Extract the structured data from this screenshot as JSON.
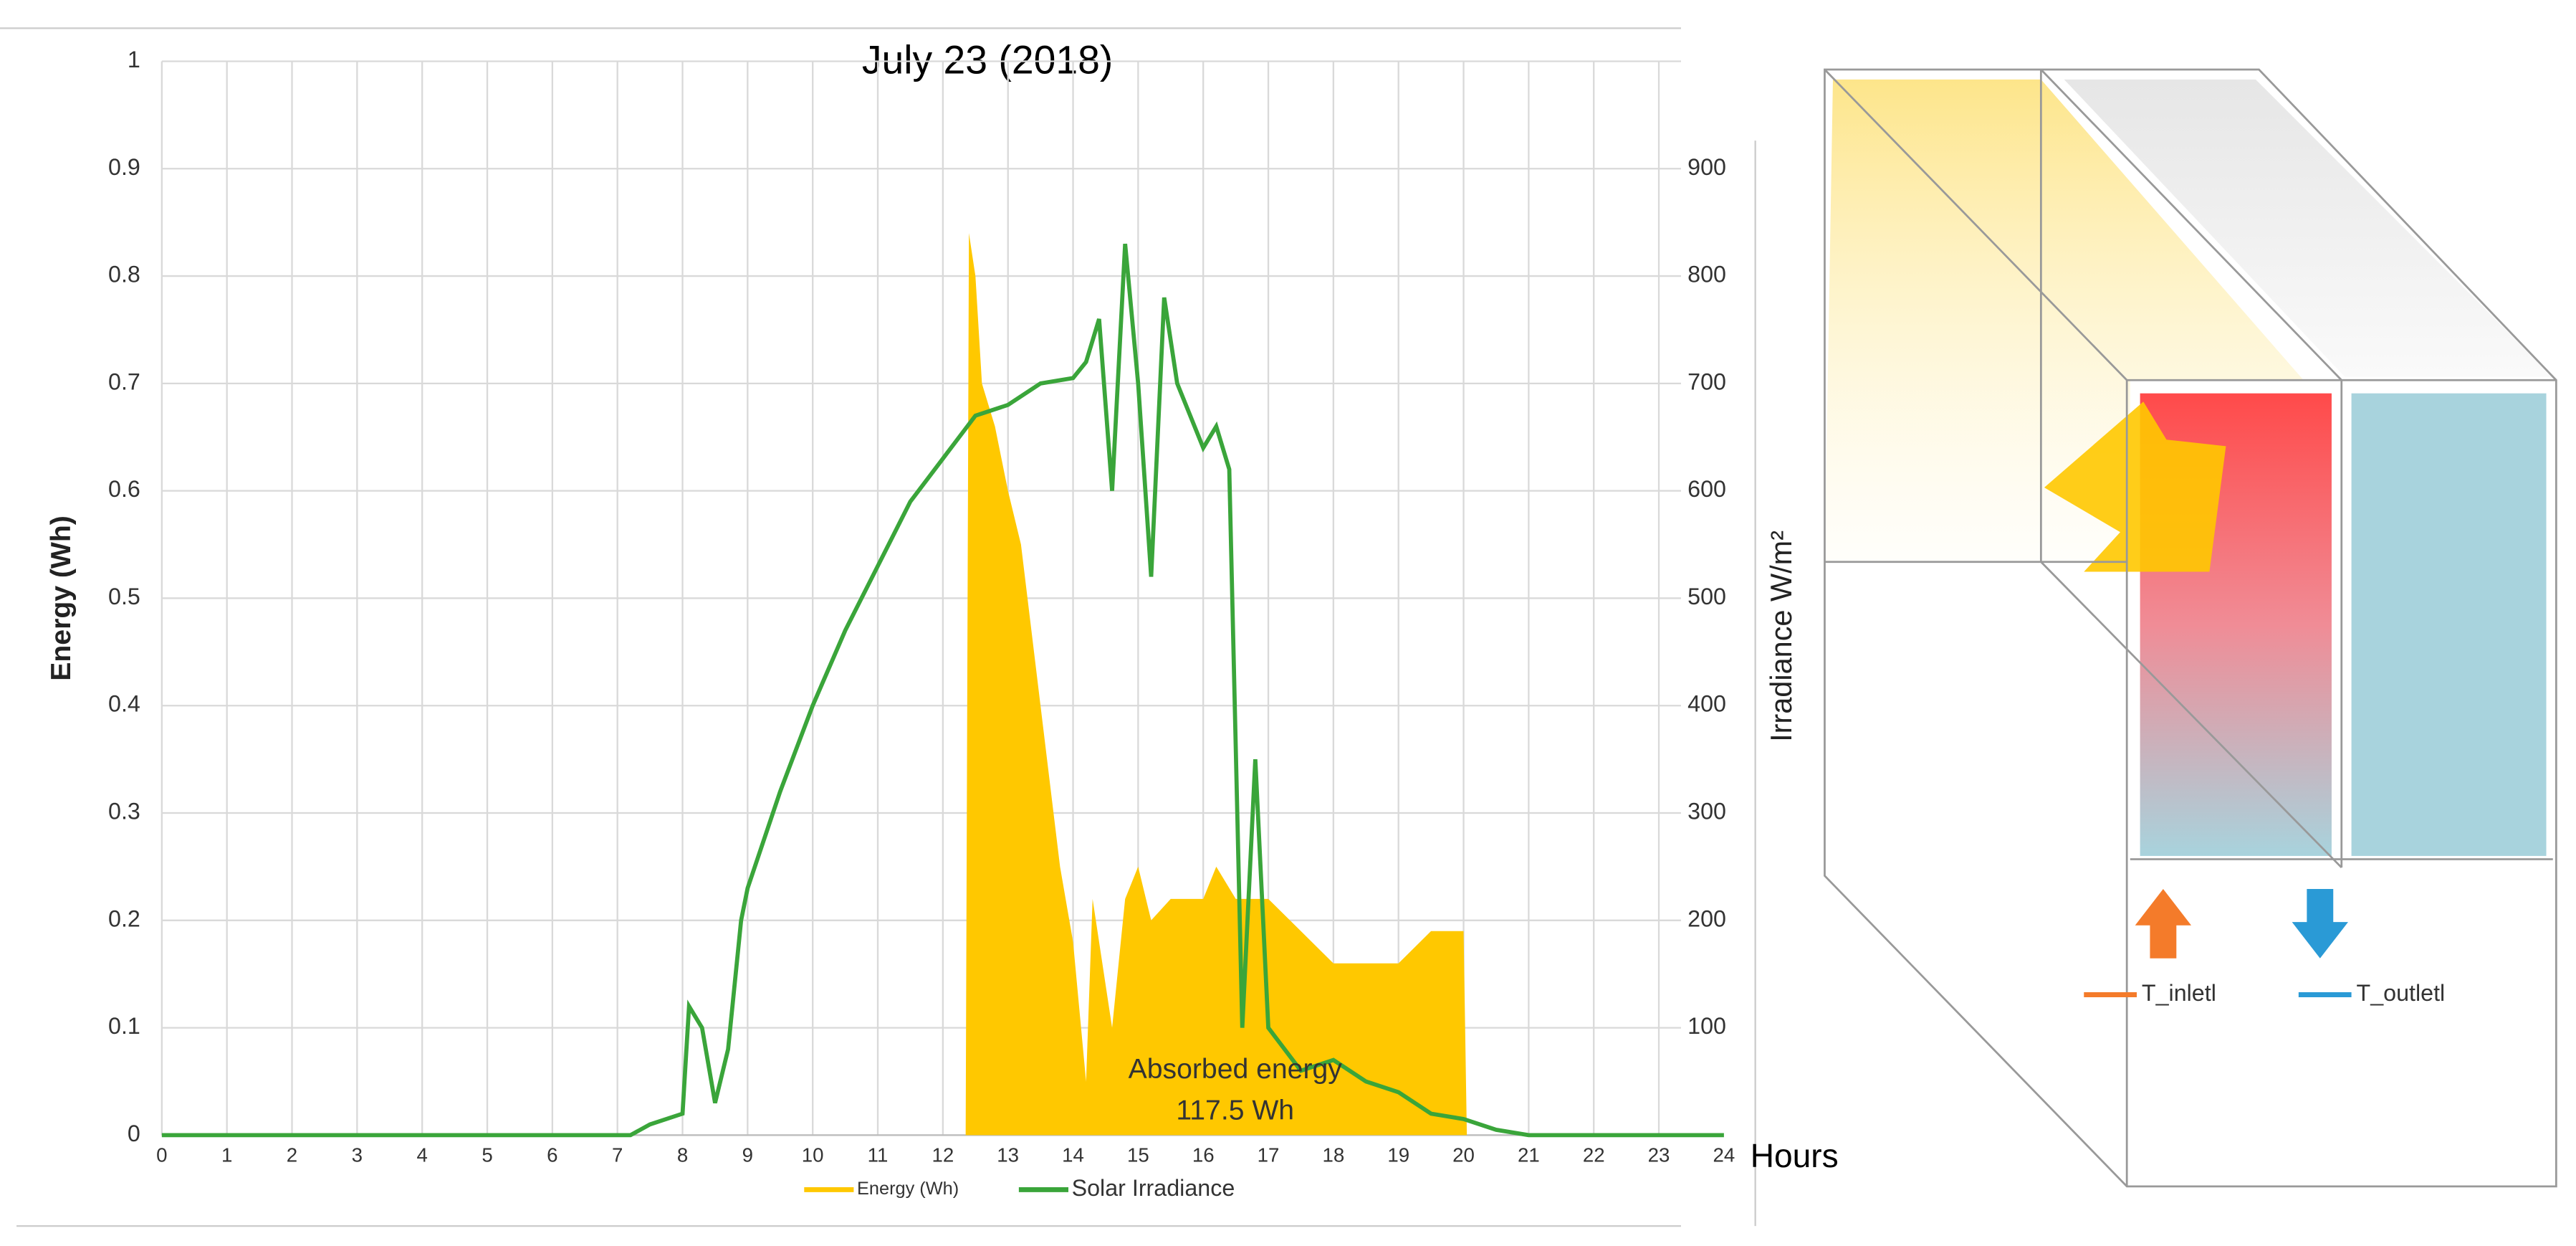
{
  "chart_data": {
    "type": "area-line",
    "title": "July 23 (2018)",
    "y_label": "Energy (Wh)",
    "y2_label": "Irradiance W/m²",
    "x_label": "Hours",
    "xlim": [
      0,
      24
    ],
    "xticks": [
      0,
      1,
      2,
      3,
      4,
      5,
      6,
      7,
      8,
      9,
      10,
      11,
      12,
      13,
      14,
      15,
      16,
      17,
      18,
      19,
      20,
      21,
      22,
      23,
      24
    ],
    "ylim": [
      0,
      1
    ],
    "yticks": [
      0,
      0.1,
      0.2,
      0.3,
      0.4,
      0.5,
      0.6,
      0.7,
      0.8,
      0.9,
      1
    ],
    "y2lim": [
      0,
      1000
    ],
    "y2ticks": [
      100,
      200,
      300,
      400,
      500,
      600,
      700,
      800,
      900
    ],
    "grid": true,
    "legend": "bottom",
    "annotation": [
      "Absorbed energy",
      "117.5 Wh"
    ],
    "series": [
      {
        "name": "Energy (Wh)",
        "color": "#ffc800",
        "kind": "area",
        "x": [
          0,
          12.35,
          12.4,
          12.5,
          12.6,
          12.8,
          13,
          13.2,
          13.4,
          13.6,
          13.8,
          14,
          14.2,
          14.3,
          14.6,
          14.8,
          15,
          15.2,
          15.5,
          16,
          16.2,
          16.5,
          17,
          17.5,
          18,
          19,
          19.5,
          20,
          20.05,
          24
        ],
        "values": [
          0,
          0,
          0.84,
          0.8,
          0.7,
          0.66,
          0.6,
          0.55,
          0.45,
          0.35,
          0.25,
          0.18,
          0.05,
          0.22,
          0.1,
          0.22,
          0.25,
          0.2,
          0.22,
          0.22,
          0.25,
          0.22,
          0.22,
          0.19,
          0.16,
          0.16,
          0.19,
          0.19,
          0,
          0
        ]
      },
      {
        "name": "Solar Irradiance",
        "color": "#3aa53a",
        "kind": "line",
        "axis": "y2",
        "x": [
          0,
          7.2,
          7.5,
          8,
          8.1,
          8.3,
          8.5,
          8.7,
          8.9,
          9,
          9.5,
          10,
          10.5,
          11,
          11.5,
          12,
          12.5,
          13,
          13.5,
          14,
          14.2,
          14.4,
          14.6,
          14.8,
          15,
          15.2,
          15.4,
          15.6,
          16,
          16.2,
          16.4,
          16.6,
          16.8,
          17,
          17.5,
          18,
          18.5,
          19,
          19.5,
          20,
          20.5,
          21,
          24
        ],
        "values": [
          0,
          0,
          10,
          20,
          120,
          100,
          30,
          80,
          200,
          230,
          320,
          400,
          470,
          530,
          590,
          630,
          670,
          680,
          700,
          705,
          720,
          760,
          600,
          830,
          700,
          520,
          780,
          700,
          640,
          660,
          620,
          100,
          350,
          100,
          60,
          70,
          50,
          40,
          20,
          15,
          5,
          0,
          0
        ]
      }
    ]
  },
  "diagram": {
    "legend": [
      {
        "label": "T_inletl",
        "color": "#f47b2a"
      },
      {
        "label": "T_outletl",
        "color": "#2a9ad6"
      }
    ]
  }
}
